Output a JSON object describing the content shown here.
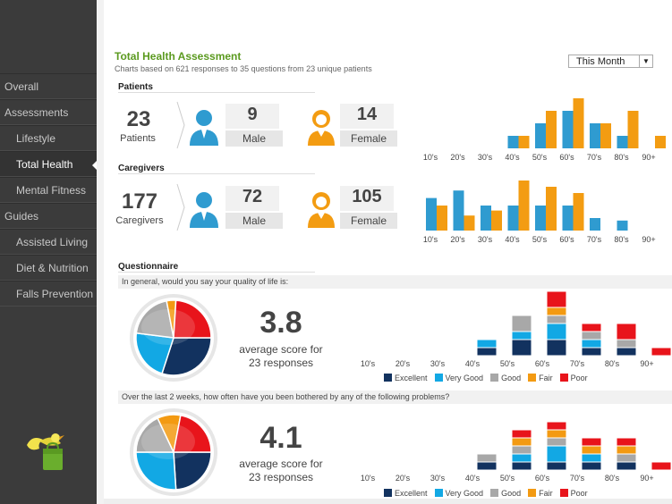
{
  "sidebar": {
    "items": [
      {
        "label": "Overall",
        "sub": false,
        "active": false
      },
      {
        "label": "Assessments",
        "sub": false,
        "active": false
      },
      {
        "label": "Lifestyle",
        "sub": true,
        "active": false
      },
      {
        "label": "Total Health",
        "sub": true,
        "active": true
      },
      {
        "label": "Mental Fitness",
        "sub": true,
        "active": false
      },
      {
        "label": "Guides",
        "sub": false,
        "active": false
      },
      {
        "label": "Assisted Living",
        "sub": true,
        "active": false
      },
      {
        "label": "Diet & Nutrition",
        "sub": true,
        "active": false
      },
      {
        "label": "Falls Prevention",
        "sub": true,
        "active": false
      }
    ]
  },
  "header": {
    "title": "Total Health Assessment",
    "subtitle": "Charts based on 621 responses to 35 questions from 23 unique patients",
    "period": "This Month"
  },
  "patients": {
    "heading": "Patients",
    "total": "23",
    "total_label": "Patients",
    "male": "9",
    "male_label": "Male",
    "female": "14",
    "female_label": "Female"
  },
  "caregivers": {
    "heading": "Caregivers",
    "total": "177",
    "total_label": "Caregivers",
    "male": "72",
    "male_label": "Male",
    "female": "105",
    "female_label": "Female"
  },
  "questionnaire": {
    "heading": "Questionnaire",
    "questions": [
      {
        "text": "In general, would you say your quality of life is:",
        "score": "3.8",
        "score_label": "average score for",
        "responses": "23 responses"
      },
      {
        "text": "Over the last 2 weeks, how often have you been bothered by any of the following problems?",
        "score": "4.1",
        "score_label": "average score for",
        "responses": "23 responses"
      }
    ],
    "legend": [
      "Excellent",
      "Very Good",
      "Good",
      "Fair",
      "Poor"
    ]
  },
  "colors": {
    "male": "#2f9bd0",
    "female": "#f39c12",
    "excellent": "#12325f",
    "very_good": "#12a8e4",
    "good": "#a8a8a8",
    "fair": "#f39a12",
    "poor": "#e8141b",
    "title": "#5b9a1f"
  },
  "chart_data": [
    {
      "type": "bar",
      "categories": [
        "10's",
        "20's",
        "30's",
        "40's",
        "50's",
        "60's",
        "70's",
        "80's",
        "90+"
      ],
      "series": [
        {
          "values": [
            0,
            0,
            0,
            1,
            2,
            3,
            2,
            1,
            0
          ]
        },
        {
          "values": [
            0,
            0,
            0,
            1,
            3,
            4,
            2,
            3,
            1
          ]
        }
      ],
      "ylim": [
        0,
        4
      ]
    },
    {
      "type": "bar",
      "categories": [
        "10's",
        "20's",
        "30's",
        "40's",
        "50's",
        "60's",
        "70's",
        "80's",
        "90+"
      ],
      "series": [
        {
          "values": [
            1.3,
            1.6,
            1.0,
            1.0,
            1.0,
            1.0,
            0.5,
            0.4,
            0
          ]
        },
        {
          "values": [
            1.0,
            0.6,
            0.8,
            2.0,
            1.75,
            1.5,
            0,
            0,
            0
          ]
        }
      ],
      "ylim": [
        0,
        2
      ]
    },
    {
      "type": "bar",
      "stacked": true,
      "categories": [
        "10's",
        "20's",
        "30's",
        "40's",
        "50's",
        "60's",
        "70's",
        "80's",
        "90+"
      ],
      "series": [
        {
          "name": "Excellent",
          "values": [
            0,
            0,
            0,
            1,
            2,
            2,
            1,
            1,
            0
          ]
        },
        {
          "name": "Very Good",
          "values": [
            0,
            0,
            0,
            1,
            1,
            2,
            1,
            0,
            0
          ]
        },
        {
          "name": "Good",
          "values": [
            0,
            0,
            0,
            0,
            2,
            1,
            1,
            1,
            0
          ]
        },
        {
          "name": "Fair",
          "values": [
            0,
            0,
            0,
            0,
            0,
            1,
            0,
            0,
            0
          ]
        },
        {
          "name": "Poor",
          "values": [
            0,
            0,
            0,
            0,
            0,
            2,
            1,
            2,
            1
          ]
        }
      ]
    },
    {
      "type": "bar",
      "stacked": true,
      "categories": [
        "10's",
        "20's",
        "30's",
        "40's",
        "50's",
        "60's",
        "70's",
        "80's",
        "90+"
      ],
      "series": [
        {
          "name": "Excellent",
          "values": [
            0,
            0,
            0,
            1,
            1,
            1,
            1,
            1,
            0
          ]
        },
        {
          "name": "Very Good",
          "values": [
            0,
            0,
            0,
            0,
            1,
            2,
            1,
            0,
            0
          ]
        },
        {
          "name": "Good",
          "values": [
            0,
            0,
            0,
            1,
            1,
            1,
            0,
            1,
            0
          ]
        },
        {
          "name": "Fair",
          "values": [
            0,
            0,
            0,
            0,
            1,
            1,
            1,
            1,
            0
          ]
        },
        {
          "name": "Poor",
          "values": [
            0,
            0,
            0,
            0,
            1,
            1,
            1,
            1,
            1
          ]
        }
      ]
    },
    {
      "type": "pie",
      "labels": [
        "Excellent",
        "Very Good",
        "Good",
        "Fair",
        "Poor"
      ],
      "values": [
        30,
        22,
        20,
        4,
        24
      ]
    },
    {
      "type": "pie",
      "labels": [
        "Excellent",
        "Very Good",
        "Good",
        "Fair",
        "Poor"
      ],
      "values": [
        24,
        26,
        18,
        10,
        22
      ]
    }
  ]
}
